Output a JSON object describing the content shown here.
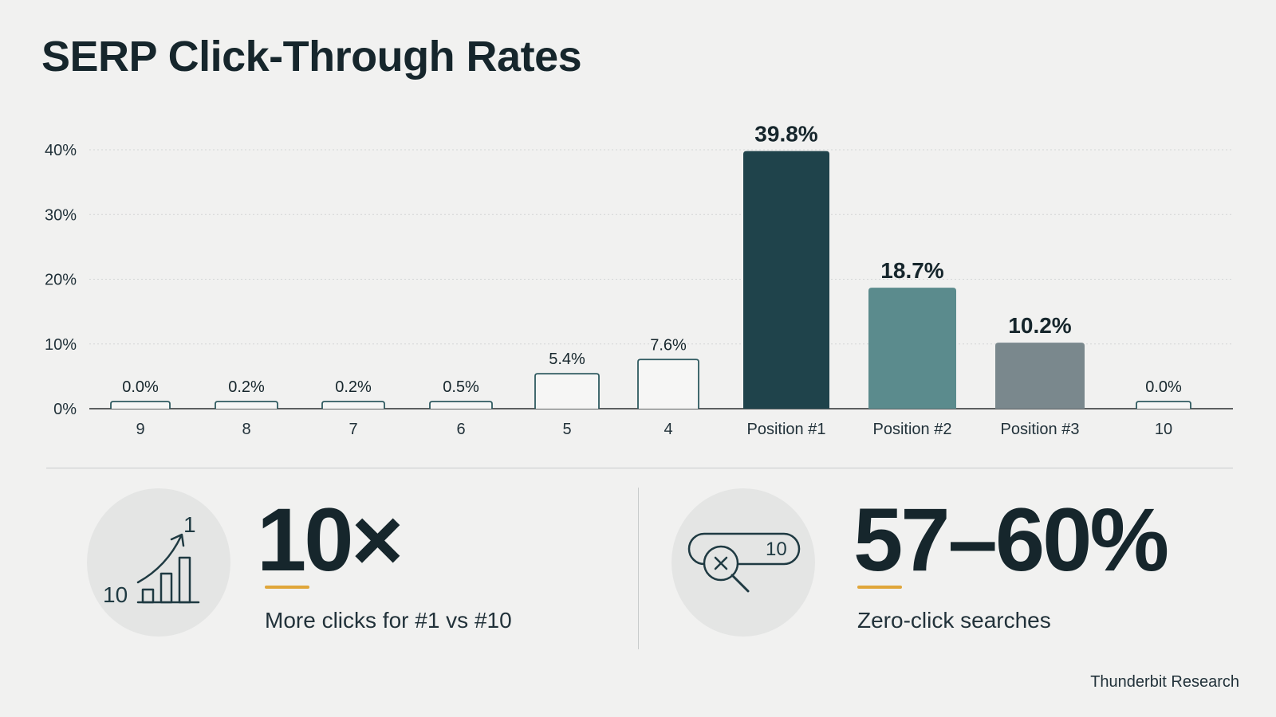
{
  "chart_data": {
    "type": "bar",
    "title": "SERP Click-Through Rates",
    "categories": [
      "9",
      "8",
      "7",
      "6",
      "5",
      "4",
      "Position #1",
      "Position #2",
      "Position #3",
      "10"
    ],
    "values": [
      0.0,
      0.2,
      0.2,
      0.5,
      5.4,
      7.6,
      39.8,
      18.7,
      10.2,
      0.0
    ],
    "value_labels": [
      "0.0%",
      "0.2%",
      "0.2%",
      "0.5%",
      "5.4%",
      "7.6%",
      "39.8%",
      "18.7%",
      "10.2%",
      "0.0%"
    ],
    "y_ticks": [
      0,
      10,
      20,
      30,
      40
    ],
    "y_tick_labels": [
      "0%",
      "10%",
      "20%",
      "30%",
      "40%"
    ],
    "ylim": [
      0,
      40
    ],
    "grid": true,
    "xlabel": "",
    "ylabel": "",
    "bar_styles": [
      "outline",
      "outline",
      "outline",
      "outline",
      "outline",
      "outline",
      "filled-dark",
      "filled-teal",
      "filled-gray",
      "outline"
    ],
    "colors": {
      "outline_stroke": "#2f5a60",
      "filled_dark": "#1f434b",
      "filled_teal": "#5b8b8d",
      "filled_gray": "#7a888d",
      "grid": "#d3d6d6",
      "axis": "#2a2f31"
    }
  },
  "stats": [
    {
      "icon": "ranking-growth-icon",
      "value": "10×",
      "label": "More clicks for #1 vs #10",
      "icon_text_low": "10",
      "icon_text_high": "1"
    },
    {
      "icon": "zero-click-search-icon",
      "value": "57–60%",
      "label": "Zero-click searches",
      "icon_text": "10"
    }
  ],
  "accent_color": "#e0a63a",
  "source": "Thunderbit Research"
}
